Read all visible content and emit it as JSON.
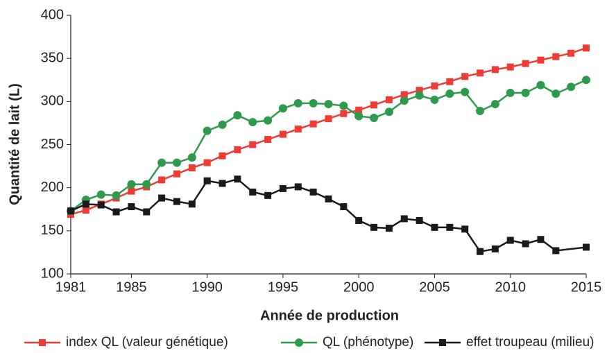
{
  "chart_data": {
    "type": "line",
    "x_label": "Année de production",
    "y_label": "Quantité de lait (L)",
    "x": [
      1981,
      1982,
      1983,
      1984,
      1985,
      1986,
      1987,
      1988,
      1989,
      1990,
      1991,
      1992,
      1993,
      1994,
      1995,
      1996,
      1997,
      1998,
      1999,
      2000,
      2001,
      2002,
      2003,
      2004,
      2005,
      2006,
      2007,
      2008,
      2009,
      2010,
      2011,
      2012,
      2013,
      2014,
      2015
    ],
    "xlim": [
      1981,
      2015
    ],
    "xticks": [
      1981,
      1985,
      1990,
      1995,
      2000,
      2005,
      2010,
      2015
    ],
    "ylim": [
      100,
      400
    ],
    "yticks": [
      100,
      150,
      200,
      250,
      300,
      350,
      400
    ],
    "legend": "bottom",
    "series": [
      {
        "name": "index QL (valeur génétique)",
        "color": "#ee3b33",
        "marker": "square",
        "values": [
          169,
          174,
          181,
          188,
          196,
          201,
          209,
          216,
          223,
          229,
          237,
          244,
          250,
          256,
          262,
          268,
          274,
          280,
          286,
          290,
          296,
          302,
          308,
          313,
          318,
          323,
          329,
          333,
          337,
          340,
          344,
          348,
          352,
          356,
          362
        ]
      },
      {
        "name": "QL (phénotype)",
        "color": "#2e9a4e",
        "marker": "circle",
        "values": [
          173,
          186,
          192,
          191,
          204,
          204,
          229,
          229,
          235,
          266,
          273,
          284,
          276,
          278,
          292,
          298,
          298,
          297,
          295,
          283,
          281,
          288,
          301,
          307,
          302,
          309,
          311,
          289,
          297,
          310,
          310,
          319,
          309,
          317,
          325
        ]
      },
      {
        "name": "effet troupeau (milieu)",
        "color": "#1a1a1a",
        "marker": "square",
        "x": [
          1981,
          1982,
          1983,
          1984,
          1985,
          1986,
          1987,
          1988,
          1989,
          1990,
          1991,
          1992,
          1993,
          1994,
          1995,
          1996,
          1997,
          1998,
          1999,
          2000,
          2001,
          2002,
          2003,
          2004,
          2005,
          2006,
          2007,
          2008,
          2009,
          2010,
          2011,
          2012,
          2013,
          2015
        ],
        "values": [
          173,
          181,
          180,
          172,
          178,
          172,
          188,
          184,
          181,
          208,
          205,
          210,
          195,
          191,
          199,
          201,
          195,
          187,
          178,
          162,
          154,
          153,
          164,
          162,
          154,
          154,
          152,
          126,
          129,
          139,
          135,
          140,
          127,
          131
        ]
      }
    ]
  }
}
